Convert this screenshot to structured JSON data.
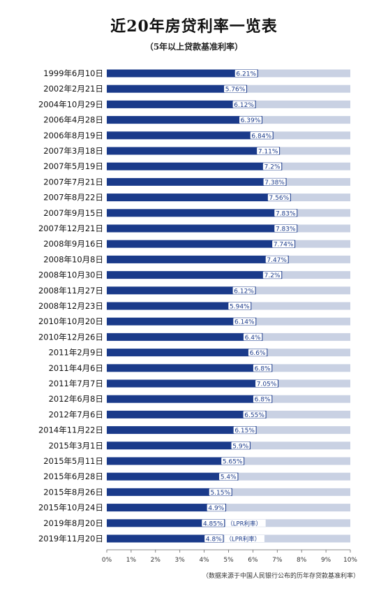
{
  "chart_data": {
    "type": "bar",
    "orientation": "horizontal",
    "title": "近20年房贷利率一览表",
    "subtitle": "（5年以上贷款基准利率）",
    "source_note": "（数据来源于中国人民银行公布的历年存贷款基准利率）",
    "xlim": [
      0,
      10
    ],
    "x_tick_labels": [
      "0%",
      "1%",
      "2%",
      "3%",
      "4%",
      "5%",
      "6%",
      "7%",
      "8%",
      "9%",
      "10%"
    ],
    "categories": [
      "1999年6月10日",
      "2002年2月21日",
      "2004年10月29日",
      "2006年4月28日",
      "2006年8月19日",
      "2007年3月18日",
      "2007年5月19日",
      "2007年7月21日",
      "2007年8月22日",
      "2007年9月15日",
      "2007年12月21日",
      "2008年9月16日",
      "2008年10月8日",
      "2008年10月30日",
      "2008年11月27日",
      "2008年12月23日",
      "2010年10月20日",
      "2010年12月26日",
      "2011年2月9日",
      "2011年4月6日",
      "2011年7月7日",
      "2012年6月8日",
      "2012年7月6日",
      "2014年11月22日",
      "2015年3月1日",
      "2015年5月11日",
      "2015年6月28日",
      "2015年8月26日",
      "2015年10月24日",
      "2019年8月20日",
      "2019年11月20日"
    ],
    "values": [
      6.21,
      5.76,
      6.12,
      6.39,
      6.84,
      7.11,
      7.2,
      7.38,
      7.56,
      7.83,
      7.83,
      7.74,
      7.47,
      7.2,
      6.12,
      5.94,
      6.14,
      6.4,
      6.6,
      6.8,
      7.05,
      6.8,
      6.55,
      6.15,
      5.9,
      5.65,
      5.4,
      5.15,
      4.9,
      4.85,
      4.8
    ],
    "data_labels": [
      "6.21%",
      "5.76%",
      "6.12%",
      "6.39%",
      "6.84%",
      "7.11%",
      "7.2%",
      "7.38%",
      "7.56%",
      "7.83%",
      "7.83%",
      "7.74%",
      "7.47%",
      "7.2%",
      "6.12%",
      "5.94%",
      "6.14%",
      "6.4%",
      "6.6%",
      "6.8%",
      "7.05%",
      "6.8%",
      "6.55%",
      "6.15%",
      "5.9%",
      "5.65%",
      "5.4%",
      "5.15%",
      "4.9%",
      "4.85%",
      "4.8%"
    ],
    "annotations": [
      {
        "index": 29,
        "text": "（LPR利率）"
      },
      {
        "index": 30,
        "text": "（LPR利率）"
      }
    ],
    "colors": {
      "bar": "#1a3a8a",
      "track": "#c9d1e3",
      "label_box": "#ffffff",
      "text": "#111111"
    },
    "grid": false
  }
}
